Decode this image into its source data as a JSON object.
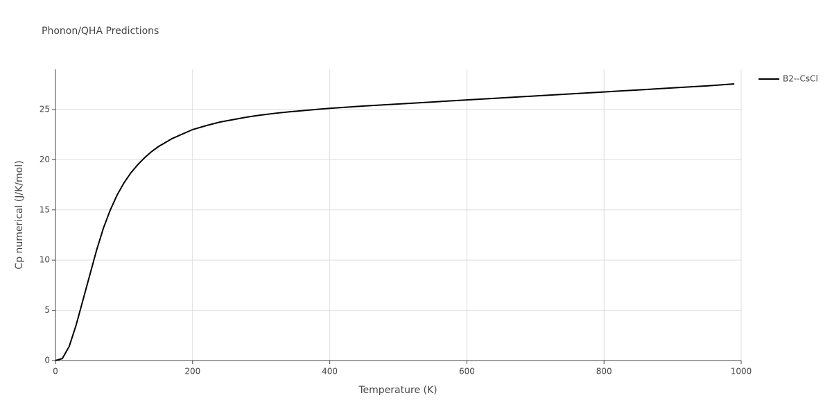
{
  "chart_data": {
    "type": "line",
    "title": "Phonon/QHA Predictions",
    "x_label": "Temperature (K)",
    "y_label": "Cp numerical (J/K/mol)",
    "x": [
      0,
      10,
      20,
      30,
      40,
      50,
      60,
      70,
      80,
      90,
      100,
      110,
      120,
      130,
      140,
      150,
      160,
      170,
      180,
      190,
      200,
      220,
      240,
      260,
      280,
      300,
      320,
      340,
      360,
      380,
      400,
      450,
      500,
      550,
      600,
      650,
      700,
      750,
      800,
      850,
      900,
      950,
      990
    ],
    "series": [
      {
        "name": "B2--CsCl",
        "color": "#000000",
        "values": [
          0,
          0.2,
          1.4,
          3.5,
          6,
          8.5,
          11,
          13.2,
          15,
          16.5,
          17.7,
          18.7,
          19.5,
          20.2,
          20.8,
          21.3,
          21.7,
          22.1,
          22.4,
          22.7,
          23.0,
          23.4,
          23.75,
          24.0,
          24.25,
          24.45,
          24.62,
          24.76,
          24.88,
          25.0,
          25.12,
          25.35,
          25.55,
          25.75,
          25.95,
          26.15,
          26.35,
          26.55,
          26.75,
          26.95,
          27.15,
          27.35,
          27.55
        ]
      }
    ],
    "xlim": [
      0,
      1000
    ],
    "xticks": [
      0,
      200,
      400,
      600,
      800,
      1000
    ],
    "ylim": [
      0,
      29
    ],
    "yticks": [
      0,
      5,
      10,
      15,
      20,
      25
    ],
    "grid": true,
    "legend": "right"
  }
}
